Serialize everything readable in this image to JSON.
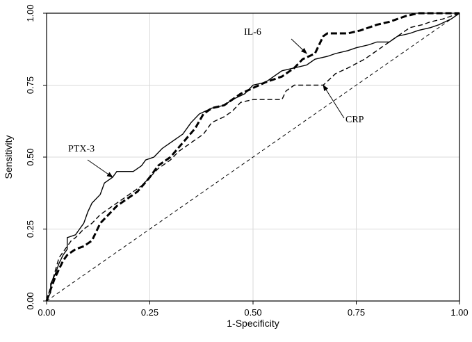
{
  "chart_data": {
    "type": "line",
    "xlabel": "1-Specificity",
    "ylabel": "Sensitivity",
    "xlim": [
      0,
      1
    ],
    "ylim": [
      0,
      1
    ],
    "grid": true,
    "x_ticks": [
      "0.00",
      "0.25",
      "0.50",
      "0.75",
      "1.00"
    ],
    "y_ticks": [
      "0.00",
      "0.25",
      "0.50",
      "0.75",
      "1.00"
    ],
    "series": [
      {
        "key": "ptx3",
        "style": "solid",
        "color": "#000000",
        "points": [
          [
            0,
            0
          ],
          [
            0.01,
            0.03
          ],
          [
            0.01,
            0.06
          ],
          [
            0.02,
            0.09
          ],
          [
            0.03,
            0.13
          ],
          [
            0.04,
            0.16
          ],
          [
            0.05,
            0.18
          ],
          [
            0.05,
            0.22
          ],
          [
            0.07,
            0.23
          ],
          [
            0.08,
            0.25
          ],
          [
            0.09,
            0.27
          ],
          [
            0.1,
            0.31
          ],
          [
            0.11,
            0.34
          ],
          [
            0.13,
            0.37
          ],
          [
            0.14,
            0.41
          ],
          [
            0.16,
            0.43
          ],
          [
            0.17,
            0.45
          ],
          [
            0.21,
            0.45
          ],
          [
            0.23,
            0.47
          ],
          [
            0.24,
            0.49
          ],
          [
            0.26,
            0.5
          ],
          [
            0.28,
            0.53
          ],
          [
            0.3,
            0.55
          ],
          [
            0.33,
            0.58
          ],
          [
            0.35,
            0.62
          ],
          [
            0.37,
            0.65
          ],
          [
            0.4,
            0.67
          ],
          [
            0.43,
            0.68
          ],
          [
            0.45,
            0.7
          ],
          [
            0.48,
            0.72
          ],
          [
            0.5,
            0.75
          ],
          [
            0.53,
            0.76
          ],
          [
            0.55,
            0.78
          ],
          [
            0.57,
            0.8
          ],
          [
            0.6,
            0.81
          ],
          [
            0.63,
            0.82
          ],
          [
            0.65,
            0.84
          ],
          [
            0.68,
            0.85
          ],
          [
            0.7,
            0.86
          ],
          [
            0.73,
            0.87
          ],
          [
            0.75,
            0.88
          ],
          [
            0.78,
            0.89
          ],
          [
            0.8,
            0.9
          ],
          [
            0.83,
            0.9
          ],
          [
            0.85,
            0.92
          ],
          [
            0.88,
            0.93
          ],
          [
            0.9,
            0.94
          ],
          [
            0.93,
            0.95
          ],
          [
            0.95,
            0.96
          ],
          [
            0.98,
            0.98
          ],
          [
            1,
            1
          ]
        ]
      },
      {
        "key": "il6",
        "style": "bold-dashed",
        "color": "#000000",
        "points": [
          [
            0,
            0
          ],
          [
            0.01,
            0.04
          ],
          [
            0.02,
            0.08
          ],
          [
            0.03,
            0.11
          ],
          [
            0.04,
            0.14
          ],
          [
            0.05,
            0.16
          ],
          [
            0.07,
            0.18
          ],
          [
            0.09,
            0.19
          ],
          [
            0.11,
            0.21
          ],
          [
            0.12,
            0.24
          ],
          [
            0.13,
            0.27
          ],
          [
            0.15,
            0.3
          ],
          [
            0.17,
            0.33
          ],
          [
            0.2,
            0.36
          ],
          [
            0.22,
            0.38
          ],
          [
            0.25,
            0.43
          ],
          [
            0.27,
            0.47
          ],
          [
            0.3,
            0.5
          ],
          [
            0.33,
            0.55
          ],
          [
            0.36,
            0.6
          ],
          [
            0.38,
            0.65
          ],
          [
            0.4,
            0.67
          ],
          [
            0.43,
            0.68
          ],
          [
            0.47,
            0.72
          ],
          [
            0.5,
            0.74
          ],
          [
            0.53,
            0.76
          ],
          [
            0.57,
            0.78
          ],
          [
            0.6,
            0.81
          ],
          [
            0.62,
            0.84
          ],
          [
            0.65,
            0.86
          ],
          [
            0.67,
            0.92
          ],
          [
            0.68,
            0.93
          ],
          [
            0.73,
            0.93
          ],
          [
            0.76,
            0.94
          ],
          [
            0.8,
            0.96
          ],
          [
            0.83,
            0.97
          ],
          [
            0.87,
            0.99
          ],
          [
            0.9,
            1
          ],
          [
            1,
            1
          ]
        ]
      },
      {
        "key": "crp",
        "style": "dashed",
        "color": "#000000",
        "points": [
          [
            0,
            0
          ],
          [
            0.01,
            0.05
          ],
          [
            0.02,
            0.1
          ],
          [
            0.03,
            0.15
          ],
          [
            0.05,
            0.19
          ],
          [
            0.06,
            0.21
          ],
          [
            0.07,
            0.22
          ],
          [
            0.09,
            0.25
          ],
          [
            0.11,
            0.27
          ],
          [
            0.13,
            0.3
          ],
          [
            0.15,
            0.32
          ],
          [
            0.17,
            0.34
          ],
          [
            0.19,
            0.36
          ],
          [
            0.21,
            0.38
          ],
          [
            0.23,
            0.4
          ],
          [
            0.25,
            0.43
          ],
          [
            0.27,
            0.46
          ],
          [
            0.3,
            0.49
          ],
          [
            0.32,
            0.52
          ],
          [
            0.35,
            0.55
          ],
          [
            0.38,
            0.58
          ],
          [
            0.4,
            0.62
          ],
          [
            0.43,
            0.64
          ],
          [
            0.45,
            0.66
          ],
          [
            0.47,
            0.69
          ],
          [
            0.5,
            0.7
          ],
          [
            0.57,
            0.7
          ],
          [
            0.58,
            0.73
          ],
          [
            0.6,
            0.75
          ],
          [
            0.67,
            0.75
          ],
          [
            0.7,
            0.79
          ],
          [
            0.73,
            0.81
          ],
          [
            0.77,
            0.84
          ],
          [
            0.8,
            0.87
          ],
          [
            0.83,
            0.9
          ],
          [
            0.86,
            0.93
          ],
          [
            0.88,
            0.95
          ],
          [
            0.91,
            0.96
          ],
          [
            0.93,
            0.97
          ],
          [
            0.96,
            0.98
          ],
          [
            1,
            1
          ]
        ]
      },
      {
        "key": "reference",
        "style": "thin-dashed",
        "color": "#000000",
        "points": [
          [
            0,
            0
          ],
          [
            1,
            1
          ]
        ]
      }
    ],
    "annotations": [
      {
        "text": "PTX-3",
        "series": "ptx3",
        "arrow_to": [
          0.16,
          0.43
        ]
      },
      {
        "text": "IL-6",
        "series": "il6",
        "arrow_to": [
          0.63,
          0.86
        ]
      },
      {
        "text": "CRP",
        "series": "crp",
        "arrow_to": [
          0.67,
          0.75
        ]
      }
    ]
  }
}
